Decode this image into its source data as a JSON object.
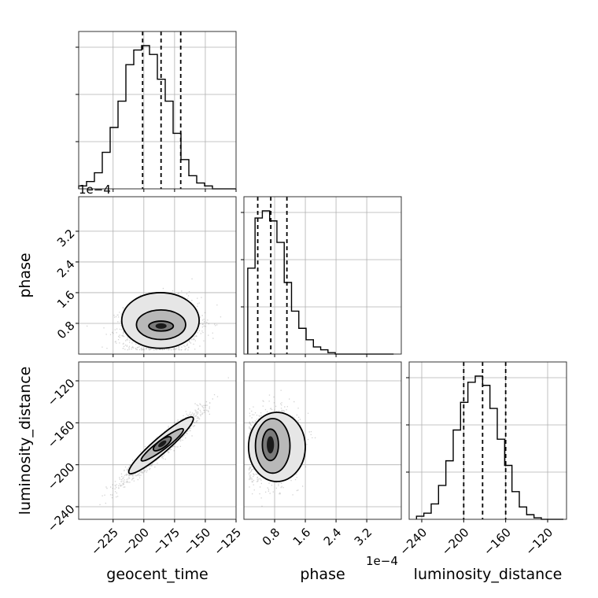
{
  "chart_data": {
    "type": "corner",
    "parameters": [
      "geocent_time",
      "phase",
      "luminosity_distance"
    ],
    "offset_label": "1e−4",
    "grid": true,
    "ranges": {
      "geocent_time": [
        -253,
        -125
      ],
      "phase": [
        0.0,
        4.1
      ],
      "luminosity_distance": [
        -252,
        -102
      ]
    },
    "ticks": {
      "geocent_time": {
        "values": [
          -225,
          -200,
          -175,
          -150,
          -125
        ],
        "labels": [
          "−225",
          "−200",
          "−175",
          "−150",
          "−125"
        ]
      },
      "phase": {
        "values": [
          0.8,
          1.6,
          2.4,
          3.2
        ],
        "labels": [
          "0.8",
          "1.6",
          "2.4",
          "3.2"
        ]
      },
      "luminosity_distance": {
        "values": [
          -240,
          -200,
          -160,
          -120
        ],
        "labels": [
          "−240",
          "−200",
          "−160",
          "−120"
        ]
      }
    },
    "quantiles": {
      "geocent_time": [
        -201,
        -186,
        -170
      ],
      "phase": [
        0.36,
        0.7,
        1.12
      ],
      "luminosity_distance": [
        -200,
        -182,
        -160
      ]
    },
    "histograms": {
      "geocent_time": {
        "edges": [
          -253,
          -246.6,
          -240.2,
          -233.8,
          -227.4,
          -221,
          -214.6,
          -208.2,
          -201.8,
          -195.4,
          -189,
          -182.6,
          -176.2,
          -169.8,
          -163.4,
          -157,
          -150.6,
          -144.2,
          -137.8,
          -131.4,
          -125
        ],
        "counts": [
          0.02,
          0.05,
          0.11,
          0.25,
          0.42,
          0.6,
          0.85,
          0.95,
          0.98,
          0.92,
          0.75,
          0.6,
          0.38,
          0.2,
          0.09,
          0.04,
          0.02,
          0.0,
          0.0,
          0.0
        ]
      },
      "phase": {
        "edges": [
          0.1,
          0.29,
          0.48,
          0.67,
          0.86,
          1.05,
          1.24,
          1.43,
          1.62,
          1.81,
          2.0,
          2.19,
          2.38,
          2.57,
          2.76,
          2.95,
          3.14,
          3.33,
          3.52,
          3.71,
          3.9
        ],
        "counts": [
          0.6,
          0.95,
          1.0,
          0.93,
          0.78,
          0.5,
          0.3,
          0.18,
          0.1,
          0.05,
          0.03,
          0.01,
          0.0,
          0.0,
          0.0,
          0.0,
          0.0,
          0.0,
          0.0,
          0.0
        ]
      },
      "luminosity_distance": {
        "edges": [
          -245,
          -238,
          -231,
          -224,
          -217,
          -210,
          -203,
          -196,
          -189,
          -182,
          -175,
          -168,
          -161,
          -154,
          -147,
          -140,
          -133,
          -126,
          -119,
          -112,
          -105
        ],
        "counts": [
          0.02,
          0.04,
          0.1,
          0.22,
          0.38,
          0.58,
          0.76,
          0.89,
          0.93,
          0.87,
          0.72,
          0.52,
          0.35,
          0.18,
          0.08,
          0.03,
          0.01,
          0.0,
          0.0,
          0.0
        ]
      }
    },
    "scatter_2d": [
      {
        "x": "geocent_time",
        "y": "phase",
        "center": [
          -186,
          0.72
        ],
        "spread": [
          15,
          0.35
        ],
        "corr": 0.1,
        "contour_levels": [
          [
            -196,
            -176,
            0.6,
            0.86
          ],
          [
            -206,
            -166,
            0.38,
            1.15
          ],
          [
            -218,
            -155,
            0.15,
            1.6
          ]
        ]
      },
      {
        "x": "geocent_time",
        "y": "luminosity_distance",
        "center": [
          -186,
          -182
        ],
        "spread": [
          15,
          16
        ],
        "corr": 0.96,
        "contour_levels": [
          [
            -192,
            -178,
            -186,
            -174
          ],
          [
            -202,
            -168,
            -196,
            -166
          ],
          [
            -212,
            -160,
            -208,
            -155
          ]
        ]
      },
      {
        "x": "phase",
        "y": "luminosity_distance",
        "center": [
          0.7,
          -182
        ],
        "spread": [
          0.35,
          16
        ],
        "corr": 0.05,
        "contour_levels": [
          [
            0.48,
            0.9,
            -196,
            -166
          ],
          [
            0.3,
            1.2,
            -208,
            -156
          ],
          [
            0.12,
            1.6,
            -216,
            -150
          ]
        ]
      }
    ]
  }
}
